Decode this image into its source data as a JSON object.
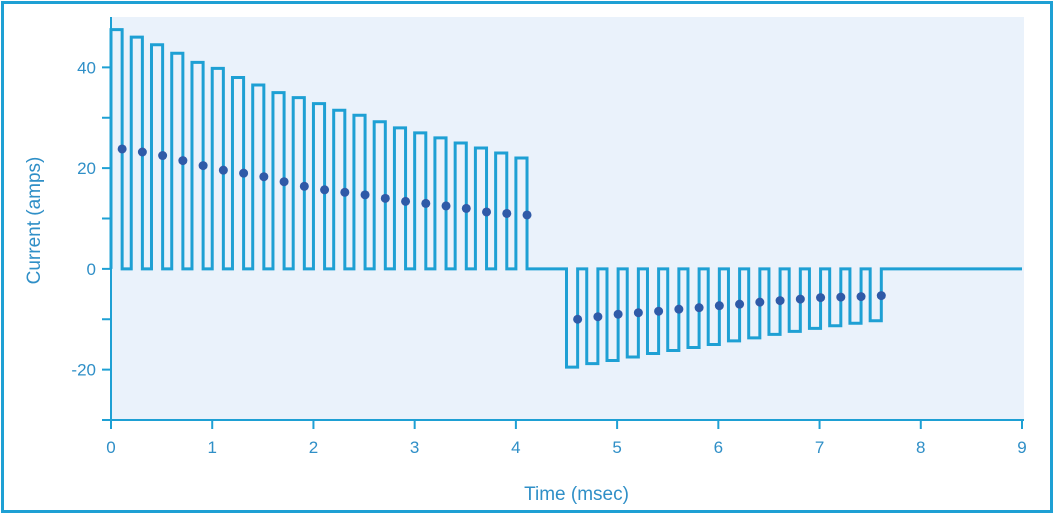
{
  "chart_data": {
    "type": "line",
    "xlabel": "Time (msec)",
    "ylabel": "Current (amps)",
    "xlim": [
      0,
      9
    ],
    "ylim": [
      -30,
      50
    ],
    "x_ticks": [
      "0",
      "1",
      "2",
      "3",
      "4",
      "5",
      "6",
      "7",
      "8",
      "9"
    ],
    "y_ticks": [
      "-20",
      "0",
      "20",
      "40"
    ],
    "y_tick_values": [
      -20,
      0,
      20,
      40
    ],
    "grid": false,
    "colors": {
      "line": "#1ea0d4",
      "dots": "#2f5aa8",
      "plot_bg": "#eaf2fb",
      "axis": "#1ea0d4",
      "text": "#2f8fc7"
    },
    "series": [
      {
        "values_description_free": true,
        "pulse_train": [
          {
            "x": 0.0,
            "peak": 47.5,
            "avg": 23.8
          },
          {
            "x": 0.2,
            "peak": 46.0,
            "avg": 23.2
          },
          {
            "x": 0.4,
            "peak": 44.5,
            "avg": 22.5
          },
          {
            "x": 0.6,
            "peak": 42.8,
            "avg": 21.5
          },
          {
            "x": 0.8,
            "peak": 41.0,
            "avg": 20.5
          },
          {
            "x": 1.0,
            "peak": 39.8,
            "avg": 19.6
          },
          {
            "x": 1.2,
            "peak": 38.0,
            "avg": 19.0
          },
          {
            "x": 1.4,
            "peak": 36.5,
            "avg": 18.3
          },
          {
            "x": 1.6,
            "peak": 35.0,
            "avg": 17.3
          },
          {
            "x": 1.8,
            "peak": 34.0,
            "avg": 16.4
          },
          {
            "x": 2.0,
            "peak": 32.8,
            "avg": 15.7
          },
          {
            "x": 2.2,
            "peak": 31.5,
            "avg": 15.2
          },
          {
            "x": 2.4,
            "peak": 30.5,
            "avg": 14.7
          },
          {
            "x": 2.6,
            "peak": 29.2,
            "avg": 14.0
          },
          {
            "x": 2.8,
            "peak": 28.0,
            "avg": 13.4
          },
          {
            "x": 3.0,
            "peak": 27.0,
            "avg": 13.0
          },
          {
            "x": 3.2,
            "peak": 26.0,
            "avg": 12.5
          },
          {
            "x": 3.4,
            "peak": 25.0,
            "avg": 12.0
          },
          {
            "x": 3.6,
            "peak": 24.0,
            "avg": 11.3
          },
          {
            "x": 3.8,
            "peak": 23.0,
            "avg": 11.0
          },
          {
            "x": 4.0,
            "peak": 22.0,
            "avg": 10.7
          },
          {
            "x": 4.5,
            "peak": -19.5,
            "avg": -10.0
          },
          {
            "x": 4.7,
            "peak": -18.8,
            "avg": -9.5
          },
          {
            "x": 4.9,
            "peak": -18.2,
            "avg": -9.0
          },
          {
            "x": 5.1,
            "peak": -17.5,
            "avg": -8.7
          },
          {
            "x": 5.3,
            "peak": -16.8,
            "avg": -8.4
          },
          {
            "x": 5.5,
            "peak": -16.2,
            "avg": -8.0
          },
          {
            "x": 5.7,
            "peak": -15.6,
            "avg": -7.7
          },
          {
            "x": 5.9,
            "peak": -15.0,
            "avg": -7.3
          },
          {
            "x": 6.1,
            "peak": -14.3,
            "avg": -7.0
          },
          {
            "x": 6.3,
            "peak": -13.7,
            "avg": -6.6
          },
          {
            "x": 6.5,
            "peak": -13.0,
            "avg": -6.3
          },
          {
            "x": 6.7,
            "peak": -12.4,
            "avg": -6.0
          },
          {
            "x": 6.9,
            "peak": -11.8,
            "avg": -5.7
          },
          {
            "x": 7.1,
            "peak": -11.3,
            "avg": -5.6
          },
          {
            "x": 7.3,
            "peak": -10.8,
            "avg": -5.5
          },
          {
            "x": 7.5,
            "peak": -10.3,
            "avg": -5.3
          }
        ],
        "pulse_width": 0.11,
        "end_time": 9.0
      }
    ]
  }
}
